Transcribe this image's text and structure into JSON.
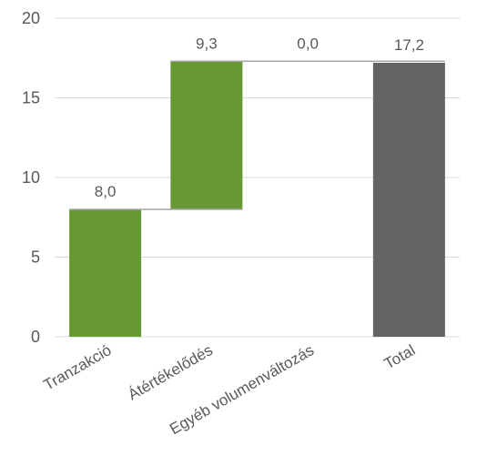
{
  "chart_data": {
    "type": "bar",
    "subtype": "waterfall",
    "title": "",
    "xlabel": "",
    "ylabel": "",
    "ylim": [
      0,
      20
    ],
    "y_ticks": [
      "0",
      "5",
      "10",
      "15",
      "20"
    ],
    "grid": true,
    "legend": "none",
    "categories": [
      "Tranzakció",
      "Átértékelődés",
      "Egyéb volumenváltozás",
      "Total"
    ],
    "values": [
      8.0,
      9.3,
      0.0,
      17.2
    ],
    "kinds": [
      "increase",
      "increase",
      "increase",
      "total"
    ],
    "data_labels": [
      "8,0",
      "9,3",
      "0,0",
      "17,2"
    ],
    "colors": {
      "increase": "#669933",
      "total": "#636363",
      "connector": "#a6a6a6",
      "grid": "#d9d9d9",
      "text": "#595959"
    }
  }
}
